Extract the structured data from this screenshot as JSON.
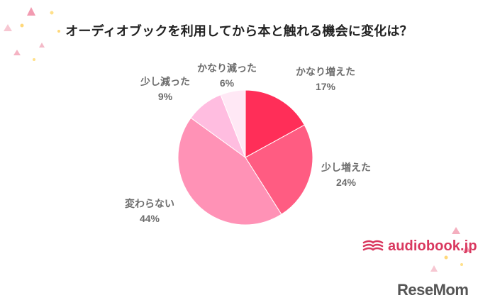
{
  "chart_data": {
    "type": "pie",
    "title": "オーディオブックを利用してから本と触れる機会に変化は？",
    "slices": [
      {
        "label": "かなり増えた",
        "value": 17,
        "value_label": "17%",
        "color": "#ff2e58"
      },
      {
        "label": "少し増えた",
        "value": 24,
        "value_label": "24%",
        "color": "#ff5c82"
      },
      {
        "label": "変わらない",
        "value": 44,
        "value_label": "44%",
        "color": "#ff92b6"
      },
      {
        "label": "少し減った",
        "value": 9,
        "value_label": "9%",
        "color": "#ffbde0"
      },
      {
        "label": "かなり減った",
        "value": 6,
        "value_label": "6%",
        "color": "#ffe8f5"
      }
    ],
    "start_angle": "12 o'clock",
    "direction": "clockwise",
    "legend": "none"
  },
  "branding": {
    "logo_text": "audiobook.jp",
    "logo_icon": "book-stack-icon",
    "watermark": "ReseMom"
  }
}
